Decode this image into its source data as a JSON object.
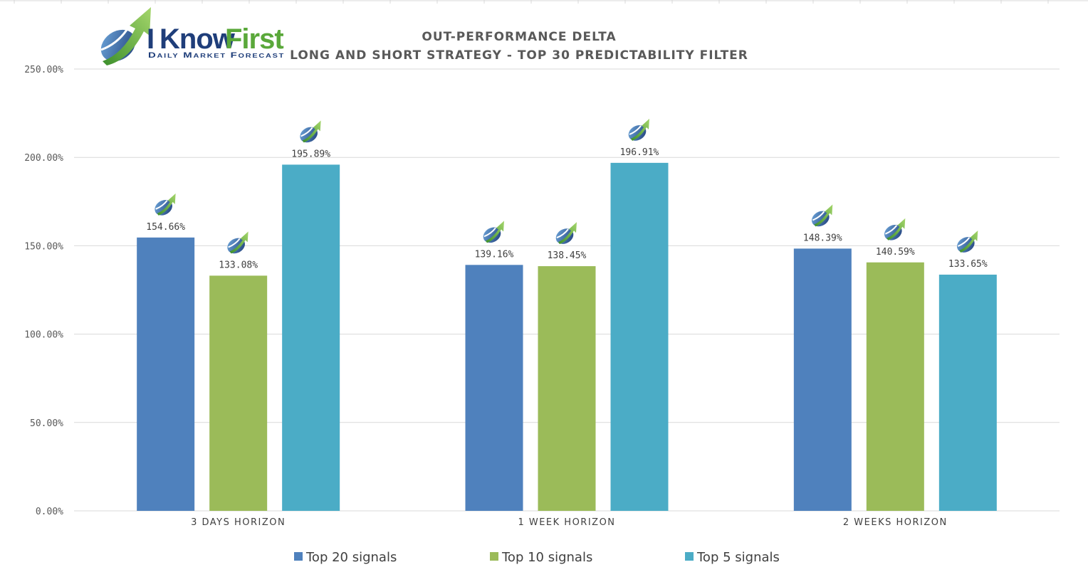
{
  "logo": {
    "word_i": "I",
    "word_know": "Know",
    "word_first": "First",
    "tagline": "Daily Market Forecast"
  },
  "chart_data": {
    "type": "bar",
    "title": "OUT-PERFORMANCE DELTA",
    "subtitle": "LONG AND SHORT STRATEGY - TOP 30 PREDICTABILITY FILTER",
    "categories": [
      "3 DAYS HORIZON",
      "1 WEEK HORIZON",
      "2 WEEKS HORIZON"
    ],
    "series": [
      {
        "name": "Top 20 signals",
        "color": "#4f81bd",
        "values": [
          154.66,
          139.16,
          148.39
        ],
        "labels": [
          "154.66%",
          "139.16%",
          "148.39%"
        ]
      },
      {
        "name": "Top 10 signals",
        "color": "#9bbb59",
        "values": [
          133.08,
          138.45,
          140.59
        ],
        "labels": [
          "133.08%",
          "138.45%",
          "140.59%"
        ]
      },
      {
        "name": "Top 5 signals",
        "color": "#4bacc6",
        "values": [
          195.89,
          196.91,
          133.65
        ],
        "labels": [
          "195.89%",
          "196.91%",
          "133.65%"
        ]
      }
    ],
    "ylim": [
      0,
      250
    ],
    "yticks": [
      0,
      50,
      100,
      150,
      200,
      250
    ],
    "ytick_labels": [
      "0.00%",
      "50.00%",
      "100.00%",
      "150.00%",
      "200.00%",
      "250.00%"
    ],
    "grid": true,
    "legend_position": "bottom",
    "xlabel": "",
    "ylabel": ""
  },
  "colors": {
    "grid": "#d9d9d9",
    "logo_blue": "#1f3e7a",
    "logo_green": "#5aa83a",
    "top_border": "#d9d9d9"
  },
  "icons": {
    "bar_marker": "ikf-logo-icon"
  }
}
